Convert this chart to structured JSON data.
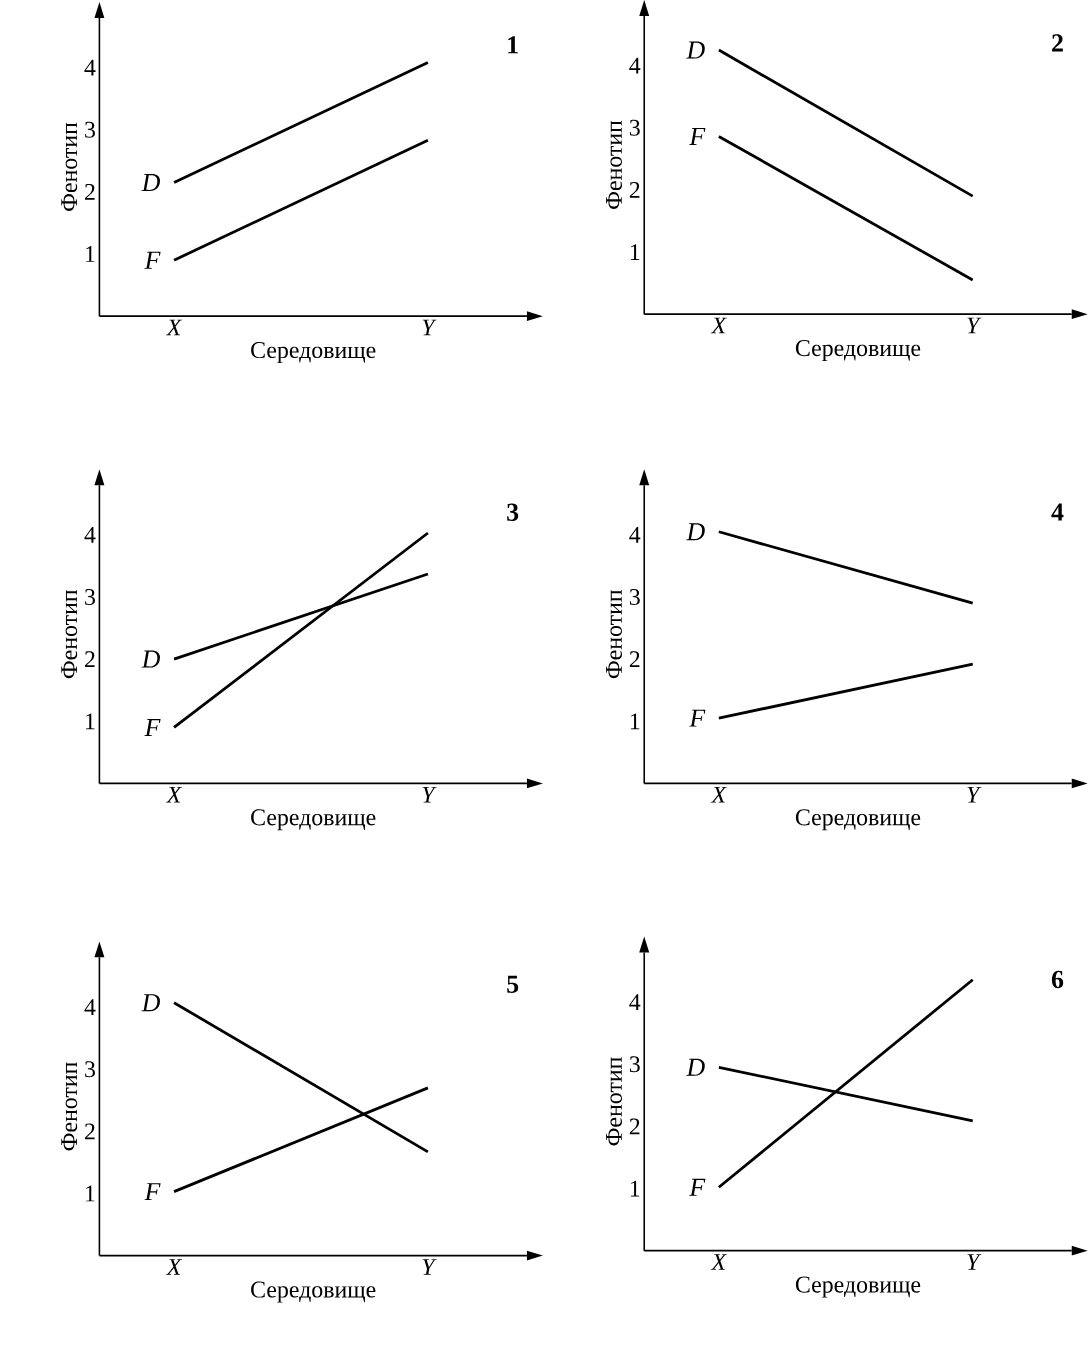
{
  "chart_data": [
    {
      "type": "line",
      "title": "1",
      "xlabel": "Середовище",
      "ylabel": "Фенотип",
      "categories": [
        "X",
        "Y"
      ],
      "ylim": [
        0,
        4.8
      ],
      "yticks": [
        1,
        2,
        3,
        4
      ],
      "color": "#000000",
      "series": [
        {
          "name": "D",
          "values": [
            2.15,
            4.08
          ]
        },
        {
          "name": "F",
          "values": [
            0.9,
            2.83
          ]
        }
      ]
    },
    {
      "type": "line",
      "title": "2",
      "xlabel": "Середовище",
      "ylabel": "Фенотип",
      "categories": [
        "X",
        "Y"
      ],
      "ylim": [
        0,
        4.8
      ],
      "yticks": [
        1,
        2,
        3,
        4
      ],
      "color": "#000000",
      "series": [
        {
          "name": "D",
          "values": [
            4.25,
            1.9
          ]
        },
        {
          "name": "F",
          "values": [
            2.86,
            0.55
          ]
        }
      ]
    },
    {
      "type": "line",
      "title": "3",
      "xlabel": "Середовище",
      "ylabel": "Фенотип",
      "categories": [
        "X",
        "Y"
      ],
      "ylim": [
        0,
        4.8
      ],
      "yticks": [
        1,
        2,
        3,
        4
      ],
      "color": "#000000",
      "series": [
        {
          "name": "D",
          "values": [
            2.0,
            3.37
          ]
        },
        {
          "name": "F",
          "values": [
            0.9,
            4.03
          ]
        }
      ]
    },
    {
      "type": "line",
      "title": "4",
      "xlabel": "Середовище",
      "ylabel": "Фенотип",
      "categories": [
        "X",
        "Y"
      ],
      "ylim": [
        0,
        4.8
      ],
      "yticks": [
        1,
        2,
        3,
        4
      ],
      "color": "#000000",
      "series": [
        {
          "name": "D",
          "values": [
            4.05,
            2.9
          ]
        },
        {
          "name": "F",
          "values": [
            1.05,
            1.92
          ]
        }
      ]
    },
    {
      "type": "line",
      "title": "5",
      "xlabel": "Середовище",
      "ylabel": "Фенотип",
      "categories": [
        "X",
        "Y"
      ],
      "ylim": [
        0,
        4.8
      ],
      "yticks": [
        1,
        2,
        3,
        4
      ],
      "color": "#000000",
      "series": [
        {
          "name": "D",
          "values": [
            4.07,
            1.67
          ]
        },
        {
          "name": "F",
          "values": [
            1.03,
            2.7
          ]
        }
      ]
    },
    {
      "type": "line",
      "title": "6",
      "xlabel": "Середовище",
      "ylabel": "Фенотип",
      "categories": [
        "X",
        "Y"
      ],
      "ylim": [
        0,
        4.8
      ],
      "yticks": [
        1,
        2,
        3,
        4
      ],
      "color": "#000000",
      "series": [
        {
          "name": "D",
          "values": [
            2.95,
            2.09
          ]
        },
        {
          "name": "F",
          "values": [
            1.02,
            4.36
          ]
        }
      ]
    }
  ]
}
